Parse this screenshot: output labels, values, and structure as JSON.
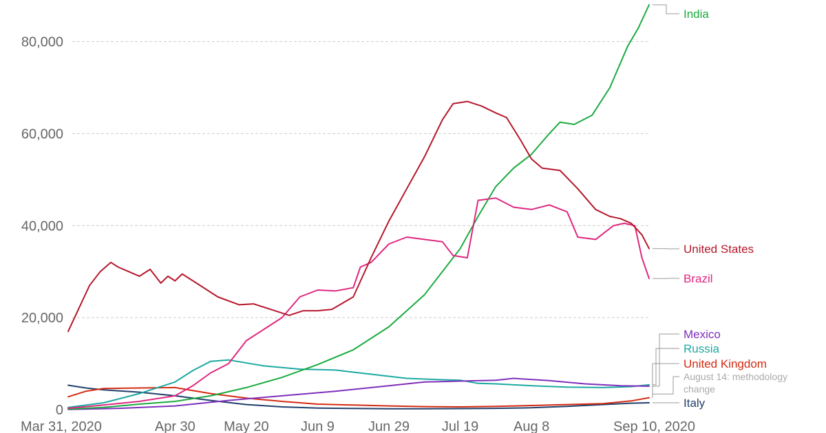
{
  "chart_data": {
    "type": "line",
    "x_start": "2020-03-31",
    "x_end": "2020-09-10",
    "x_tick_labels": [
      "Mar 31, 2020",
      "Apr 30",
      "May 20",
      "Jun 9",
      "Jun 29",
      "Jul 19",
      "Aug 8",
      "Sep 10, 2020"
    ],
    "x_tick_dates": [
      "2020-03-31",
      "2020-04-30",
      "2020-05-20",
      "2020-06-09",
      "2020-06-29",
      "2020-07-19",
      "2020-08-08",
      "2020-09-10"
    ],
    "y_ticks": [
      0,
      20000,
      40000,
      60000,
      80000
    ],
    "y_tick_labels": [
      "0",
      "20,000",
      "40,000",
      "60,000",
      "80,000"
    ],
    "ylim": [
      0,
      88000
    ],
    "grid": true,
    "annotation": "August 14: methodology change",
    "series": [
      {
        "name": "India",
        "color": "#1aaa3f",
        "points": [
          [
            "2020-03-31",
            100
          ],
          [
            "2020-04-10",
            500
          ],
          [
            "2020-04-20",
            1200
          ],
          [
            "2020-04-30",
            1800
          ],
          [
            "2020-05-10",
            3000
          ],
          [
            "2020-05-20",
            4800
          ],
          [
            "2020-05-30",
            7000
          ],
          [
            "2020-06-09",
            9800
          ],
          [
            "2020-06-19",
            13000
          ],
          [
            "2020-06-29",
            18000
          ],
          [
            "2020-07-09",
            25000
          ],
          [
            "2020-07-19",
            35000
          ],
          [
            "2020-07-24",
            42000
          ],
          [
            "2020-07-29",
            48500
          ],
          [
            "2020-08-03",
            52500
          ],
          [
            "2020-08-08",
            55500
          ],
          [
            "2020-08-13",
            60000
          ],
          [
            "2020-08-16",
            62500
          ],
          [
            "2020-08-20",
            62000
          ],
          [
            "2020-08-25",
            64000
          ],
          [
            "2020-08-30",
            70000
          ],
          [
            "2020-09-04",
            79000
          ],
          [
            "2020-09-07",
            83000
          ],
          [
            "2020-09-10",
            88000
          ]
        ]
      },
      {
        "name": "United States",
        "color": "#b5172b",
        "points": [
          [
            "2020-03-31",
            17000
          ],
          [
            "2020-04-03",
            22000
          ],
          [
            "2020-04-06",
            27000
          ],
          [
            "2020-04-09",
            30000
          ],
          [
            "2020-04-12",
            32000
          ],
          [
            "2020-04-14",
            31000
          ],
          [
            "2020-04-17",
            30000
          ],
          [
            "2020-04-20",
            29000
          ],
          [
            "2020-04-23",
            30500
          ],
          [
            "2020-04-26",
            27500
          ],
          [
            "2020-04-28",
            29000
          ],
          [
            "2020-04-30",
            28000
          ],
          [
            "2020-05-02",
            29500
          ],
          [
            "2020-05-06",
            27500
          ],
          [
            "2020-05-12",
            24500
          ],
          [
            "2020-05-18",
            22800
          ],
          [
            "2020-05-22",
            23000
          ],
          [
            "2020-05-28",
            21500
          ],
          [
            "2020-06-01",
            20500
          ],
          [
            "2020-06-05",
            21500
          ],
          [
            "2020-06-09",
            21500
          ],
          [
            "2020-06-13",
            21800
          ],
          [
            "2020-06-19",
            24500
          ],
          [
            "2020-06-24",
            33000
          ],
          [
            "2020-06-29",
            41000
          ],
          [
            "2020-07-04",
            48000
          ],
          [
            "2020-07-09",
            55000
          ],
          [
            "2020-07-14",
            63000
          ],
          [
            "2020-07-17",
            66500
          ],
          [
            "2020-07-21",
            67000
          ],
          [
            "2020-07-25",
            66000
          ],
          [
            "2020-07-29",
            64500
          ],
          [
            "2020-08-01",
            63500
          ],
          [
            "2020-08-05",
            58500
          ],
          [
            "2020-08-08",
            54500
          ],
          [
            "2020-08-11",
            52500
          ],
          [
            "2020-08-16",
            52000
          ],
          [
            "2020-08-21",
            48000
          ],
          [
            "2020-08-26",
            43500
          ],
          [
            "2020-08-30",
            42000
          ],
          [
            "2020-09-02",
            41500
          ],
          [
            "2020-09-05",
            40500
          ],
          [
            "2020-09-08",
            38000
          ],
          [
            "2020-09-10",
            35000
          ]
        ]
      },
      {
        "name": "Brazil",
        "color": "#e0267f",
        "points": [
          [
            "2020-03-31",
            300
          ],
          [
            "2020-04-10",
            1000
          ],
          [
            "2020-04-20",
            1800
          ],
          [
            "2020-04-30",
            3000
          ],
          [
            "2020-05-05",
            5200
          ],
          [
            "2020-05-10",
            8000
          ],
          [
            "2020-05-15",
            10000
          ],
          [
            "2020-05-20",
            15000
          ],
          [
            "2020-05-25",
            17500
          ],
          [
            "2020-05-30",
            20000
          ],
          [
            "2020-06-04",
            24500
          ],
          [
            "2020-06-09",
            26000
          ],
          [
            "2020-06-14",
            25800
          ],
          [
            "2020-06-19",
            26500
          ],
          [
            "2020-06-21",
            31000
          ],
          [
            "2020-06-24",
            32000
          ],
          [
            "2020-06-29",
            36000
          ],
          [
            "2020-07-04",
            37500
          ],
          [
            "2020-07-09",
            37000
          ],
          [
            "2020-07-14",
            36500
          ],
          [
            "2020-07-17",
            33500
          ],
          [
            "2020-07-21",
            33000
          ],
          [
            "2020-07-24",
            45500
          ],
          [
            "2020-07-29",
            46000
          ],
          [
            "2020-08-03",
            44000
          ],
          [
            "2020-08-08",
            43500
          ],
          [
            "2020-08-13",
            44500
          ],
          [
            "2020-08-18",
            43000
          ],
          [
            "2020-08-21",
            37500
          ],
          [
            "2020-08-26",
            37000
          ],
          [
            "2020-08-31",
            40000
          ],
          [
            "2020-09-03",
            40500
          ],
          [
            "2020-09-06",
            40000
          ],
          [
            "2020-09-08",
            33000
          ],
          [
            "2020-09-10",
            28500
          ]
        ]
      },
      {
        "name": "Mexico",
        "color": "#7e2ebc",
        "points": [
          [
            "2020-03-31",
            50
          ],
          [
            "2020-04-15",
            300
          ],
          [
            "2020-04-30",
            800
          ],
          [
            "2020-05-15",
            2000
          ],
          [
            "2020-05-30",
            3000
          ],
          [
            "2020-06-14",
            4000
          ],
          [
            "2020-06-29",
            5200
          ],
          [
            "2020-07-09",
            6000
          ],
          [
            "2020-07-19",
            6200
          ],
          [
            "2020-07-29",
            6400
          ],
          [
            "2020-08-03",
            6800
          ],
          [
            "2020-08-13",
            6300
          ],
          [
            "2020-08-23",
            5600
          ],
          [
            "2020-09-02",
            5200
          ],
          [
            "2020-09-10",
            5100
          ]
        ]
      },
      {
        "name": "Russia",
        "color": "#1ba9a1",
        "points": [
          [
            "2020-03-31",
            500
          ],
          [
            "2020-04-10",
            1500
          ],
          [
            "2020-04-20",
            3500
          ],
          [
            "2020-04-30",
            6000
          ],
          [
            "2020-05-05",
            8500
          ],
          [
            "2020-05-10",
            10500
          ],
          [
            "2020-05-15",
            10800
          ],
          [
            "2020-05-25",
            9500
          ],
          [
            "2020-06-04",
            8800
          ],
          [
            "2020-06-14",
            8600
          ],
          [
            "2020-06-24",
            7700
          ],
          [
            "2020-07-04",
            6800
          ],
          [
            "2020-07-14",
            6500
          ],
          [
            "2020-07-19",
            6400
          ],
          [
            "2020-07-24",
            5700
          ],
          [
            "2020-07-29",
            5600
          ],
          [
            "2020-08-08",
            5200
          ],
          [
            "2020-08-18",
            4900
          ],
          [
            "2020-08-28",
            4800
          ],
          [
            "2020-09-05",
            5000
          ],
          [
            "2020-09-10",
            5400
          ]
        ]
      },
      {
        "name": "United Kingdom",
        "color": "#d42a11",
        "points": [
          [
            "2020-03-31",
            2800
          ],
          [
            "2020-04-05",
            4000
          ],
          [
            "2020-04-10",
            4600
          ],
          [
            "2020-04-20",
            4700
          ],
          [
            "2020-04-30",
            4800
          ],
          [
            "2020-05-10",
            3500
          ],
          [
            "2020-05-20",
            2500
          ],
          [
            "2020-05-30",
            1800
          ],
          [
            "2020-06-09",
            1200
          ],
          [
            "2020-06-19",
            1000
          ],
          [
            "2020-06-29",
            800
          ],
          [
            "2020-07-09",
            650
          ],
          [
            "2020-07-19",
            600
          ],
          [
            "2020-07-29",
            700
          ],
          [
            "2020-08-08",
            900
          ],
          [
            "2020-08-18",
            1100
          ],
          [
            "2020-08-28",
            1300
          ],
          [
            "2020-09-05",
            1900
          ],
          [
            "2020-09-10",
            2600
          ]
        ]
      },
      {
        "name": "Italy",
        "color": "#1f3f6b",
        "points": [
          [
            "2020-03-31",
            5300
          ],
          [
            "2020-04-05",
            4700
          ],
          [
            "2020-04-10",
            4300
          ],
          [
            "2020-04-20",
            3800
          ],
          [
            "2020-04-30",
            3000
          ],
          [
            "2020-05-10",
            2000
          ],
          [
            "2020-05-20",
            1100
          ],
          [
            "2020-05-30",
            600
          ],
          [
            "2020-06-09",
            350
          ],
          [
            "2020-06-19",
            250
          ],
          [
            "2020-06-29",
            200
          ],
          [
            "2020-07-09",
            200
          ],
          [
            "2020-07-19",
            220
          ],
          [
            "2020-07-29",
            280
          ],
          [
            "2020-08-08",
            400
          ],
          [
            "2020-08-18",
            700
          ],
          [
            "2020-08-28",
            1100
          ],
          [
            "2020-09-05",
            1400
          ],
          [
            "2020-09-10",
            1500
          ]
        ]
      }
    ]
  }
}
